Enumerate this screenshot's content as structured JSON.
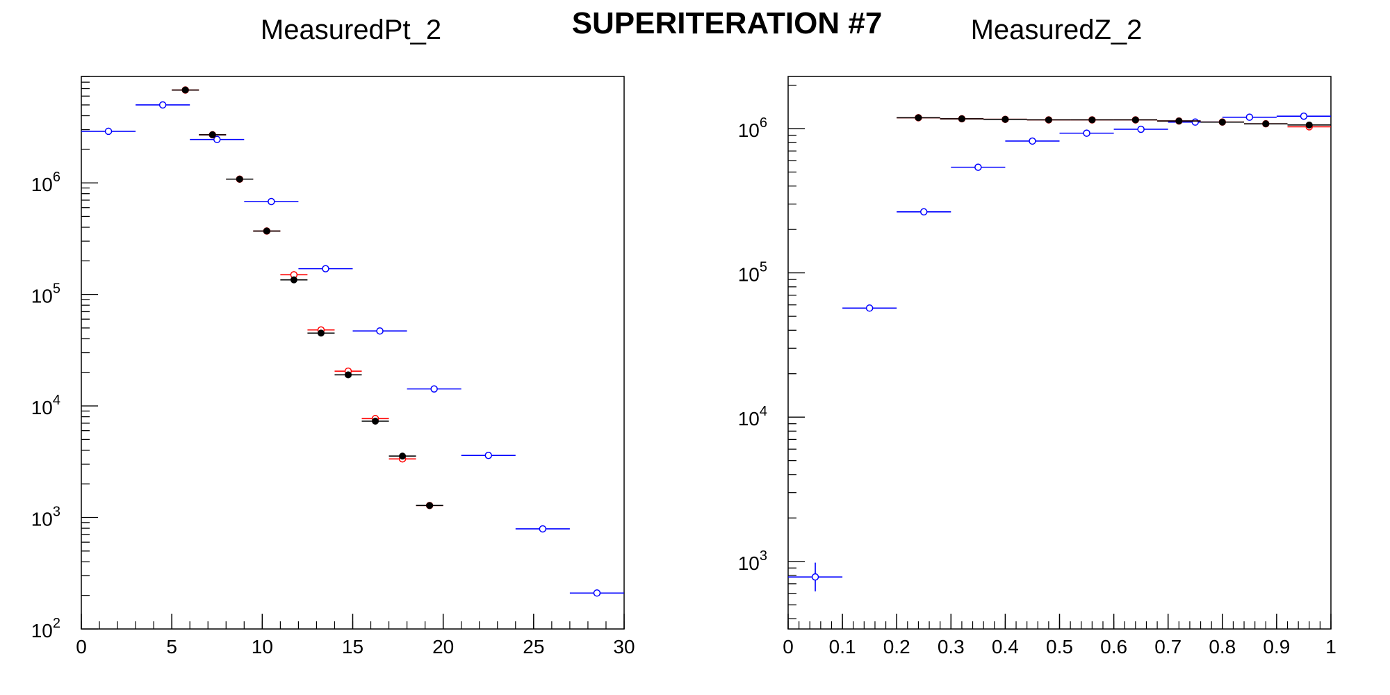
{
  "main_title": "SUPERITERATION #7",
  "colors": {
    "series_a": "#0000ff",
    "series_b": "#ff0000",
    "series_c": "#000000",
    "axis": "#000000"
  },
  "chart_data": [
    {
      "type": "scatter",
      "title": "MeasuredPt_2",
      "xlabel": "",
      "ylabel": "",
      "xlim": [
        0,
        30
      ],
      "ylim": [
        100,
        9000000
      ],
      "log_y": true,
      "grid": false,
      "x_ticks": [
        "0",
        "5",
        "10",
        "15",
        "20",
        "25",
        "30"
      ],
      "y_ticks": [
        {
          "base": "10",
          "exp": "2"
        },
        {
          "base": "10",
          "exp": "3"
        },
        {
          "base": "10",
          "exp": "4"
        },
        {
          "base": "10",
          "exp": "5"
        },
        {
          "base": "10",
          "exp": "6"
        }
      ],
      "series": [
        {
          "marker": "open-circle",
          "color": "#0000ff",
          "points": [
            {
              "x": 1.5,
              "xerr": 1.5,
              "y": 2900000
            },
            {
              "x": 4.5,
              "xerr": 1.5,
              "y": 5000000
            },
            {
              "x": 7.5,
              "xerr": 1.5,
              "y": 2450000
            },
            {
              "x": 10.5,
              "xerr": 1.5,
              "y": 680000
            },
            {
              "x": 13.5,
              "xerr": 1.5,
              "y": 170000
            },
            {
              "x": 16.5,
              "xerr": 1.5,
              "y": 47000
            },
            {
              "x": 19.5,
              "xerr": 1.5,
              "y": 14200
            },
            {
              "x": 22.5,
              "xerr": 1.5,
              "y": 3600
            },
            {
              "x": 25.5,
              "xerr": 1.5,
              "y": 790
            },
            {
              "x": 28.5,
              "xerr": 1.5,
              "y": 210
            }
          ]
        },
        {
          "marker": "open-circle",
          "color": "#ff0000",
          "points": [
            {
              "x": 5.75,
              "xerr": 0.75,
              "y": 6800000
            },
            {
              "x": 7.25,
              "xerr": 0.75,
              "y": 2700000
            },
            {
              "x": 8.75,
              "xerr": 0.75,
              "y": 1080000
            },
            {
              "x": 10.25,
              "xerr": 0.75,
              "y": 370000
            },
            {
              "x": 11.75,
              "xerr": 0.75,
              "y": 150000
            },
            {
              "x": 13.25,
              "xerr": 0.75,
              "y": 48000
            },
            {
              "x": 14.75,
              "xerr": 0.75,
              "y": 20500
            },
            {
              "x": 16.25,
              "xerr": 0.75,
              "y": 7700
            },
            {
              "x": 17.75,
              "xerr": 0.75,
              "y": 3350
            },
            {
              "x": 19.25,
              "xerr": 0.75,
              "y": 1280
            }
          ]
        },
        {
          "marker": "filled-circle",
          "color": "#000000",
          "points": [
            {
              "x": 5.75,
              "xerr": 0.75,
              "y": 6800000
            },
            {
              "x": 7.25,
              "xerr": 0.75,
              "y": 2700000
            },
            {
              "x": 8.75,
              "xerr": 0.75,
              "y": 1080000
            },
            {
              "x": 10.25,
              "xerr": 0.75,
              "y": 370000
            },
            {
              "x": 11.75,
              "xerr": 0.75,
              "y": 135000
            },
            {
              "x": 13.25,
              "xerr": 0.75,
              "y": 45000
            },
            {
              "x": 14.75,
              "xerr": 0.75,
              "y": 19000
            },
            {
              "x": 16.25,
              "xerr": 0.75,
              "y": 7300
            },
            {
              "x": 17.75,
              "xerr": 0.75,
              "y": 3550
            },
            {
              "x": 19.25,
              "xerr": 0.75,
              "y": 1280
            }
          ]
        }
      ]
    },
    {
      "type": "scatter",
      "title": "MeasuredZ_2",
      "xlabel": "",
      "ylabel": "",
      "xlim": [
        0,
        1
      ],
      "ylim": [
        340,
        2300000
      ],
      "log_y": true,
      "grid": false,
      "x_ticks": [
        "0",
        "0.1",
        "0.2",
        "0.3",
        "0.4",
        "0.5",
        "0.6",
        "0.7",
        "0.8",
        "0.9",
        "1"
      ],
      "y_ticks": [
        {
          "base": "10",
          "exp": "3"
        },
        {
          "base": "10",
          "exp": "4"
        },
        {
          "base": "10",
          "exp": "5"
        },
        {
          "base": "10",
          "exp": "6"
        }
      ],
      "series": [
        {
          "marker": "open-circle",
          "color": "#0000ff",
          "points": [
            {
              "x": 0.05,
              "xerr": 0.05,
              "y": 780,
              "yerr_lo": 620,
              "yerr_hi": 980
            },
            {
              "x": 0.15,
              "xerr": 0.05,
              "y": 57000
            },
            {
              "x": 0.25,
              "xerr": 0.05,
              "y": 265000
            },
            {
              "x": 0.35,
              "xerr": 0.05,
              "y": 540000
            },
            {
              "x": 0.45,
              "xerr": 0.05,
              "y": 820000
            },
            {
              "x": 0.55,
              "xerr": 0.05,
              "y": 930000
            },
            {
              "x": 0.65,
              "xerr": 0.05,
              "y": 990000
            },
            {
              "x": 0.75,
              "xerr": 0.05,
              "y": 1110000
            },
            {
              "x": 0.85,
              "xerr": 0.05,
              "y": 1200000
            },
            {
              "x": 0.95,
              "xerr": 0.05,
              "y": 1220000
            }
          ]
        },
        {
          "marker": "open-circle",
          "color": "#ff0000",
          "points": [
            {
              "x": 0.24,
              "xerr": 0.04,
              "y": 1190000
            },
            {
              "x": 0.32,
              "xerr": 0.04,
              "y": 1170000
            },
            {
              "x": 0.4,
              "xerr": 0.04,
              "y": 1160000
            },
            {
              "x": 0.48,
              "xerr": 0.04,
              "y": 1150000
            },
            {
              "x": 0.56,
              "xerr": 0.04,
              "y": 1150000
            },
            {
              "x": 0.64,
              "xerr": 0.04,
              "y": 1150000
            },
            {
              "x": 0.72,
              "xerr": 0.04,
              "y": 1130000
            },
            {
              "x": 0.8,
              "xerr": 0.04,
              "y": 1110000
            },
            {
              "x": 0.88,
              "xerr": 0.04,
              "y": 1080000
            },
            {
              "x": 0.96,
              "xerr": 0.04,
              "y": 1030000
            }
          ]
        },
        {
          "marker": "filled-circle",
          "color": "#000000",
          "points": [
            {
              "x": 0.24,
              "xerr": 0.04,
              "y": 1190000
            },
            {
              "x": 0.32,
              "xerr": 0.04,
              "y": 1170000
            },
            {
              "x": 0.4,
              "xerr": 0.04,
              "y": 1160000
            },
            {
              "x": 0.48,
              "xerr": 0.04,
              "y": 1150000
            },
            {
              "x": 0.56,
              "xerr": 0.04,
              "y": 1150000
            },
            {
              "x": 0.64,
              "xerr": 0.04,
              "y": 1150000
            },
            {
              "x": 0.72,
              "xerr": 0.04,
              "y": 1130000
            },
            {
              "x": 0.8,
              "xerr": 0.04,
              "y": 1110000
            },
            {
              "x": 0.88,
              "xerr": 0.04,
              "y": 1080000
            },
            {
              "x": 0.96,
              "xerr": 0.04,
              "y": 1060000
            }
          ]
        }
      ]
    }
  ]
}
